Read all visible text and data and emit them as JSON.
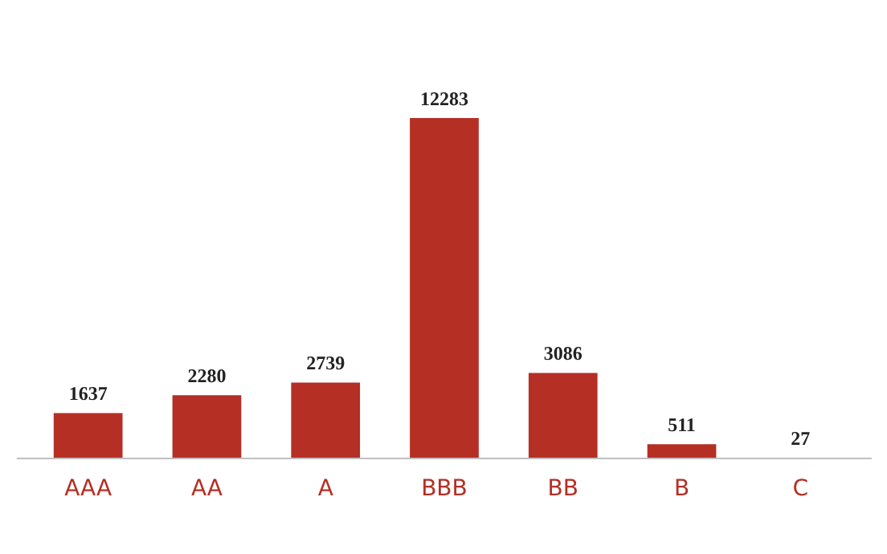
{
  "chart_data": {
    "type": "bar",
    "categories": [
      "AAA",
      "AA",
      "A",
      "BBB",
      "BB",
      "B",
      "C"
    ],
    "values": [
      1637,
      2280,
      2739,
      12283,
      3086,
      511,
      27
    ],
    "color": "#b52f25",
    "data_labels": true
  }
}
